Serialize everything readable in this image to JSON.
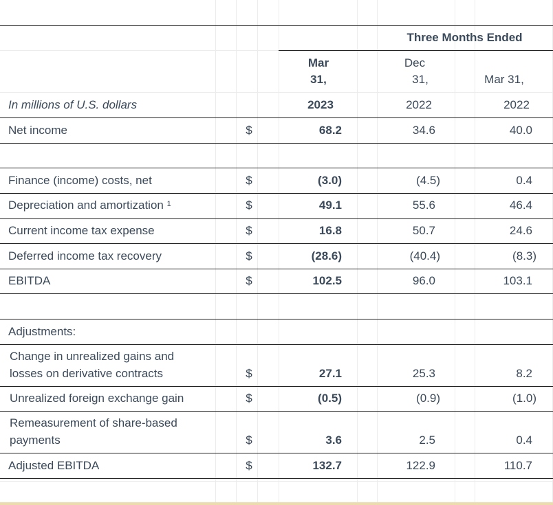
{
  "header": {
    "group_title": "Three Months Ended",
    "units_label": "In millions of U.S. dollars",
    "col1": {
      "line1": "Mar",
      "line2": "31,",
      "year": "2023"
    },
    "col2": {
      "line1": "Dec",
      "line2": "31,",
      "year": "2022"
    },
    "col3": {
      "line1": "Mar 31,",
      "year": "2022"
    }
  },
  "currency_symbol": "$",
  "rows": {
    "net_income": {
      "label": "Net income",
      "v1": "68.2",
      "v2": "34.6",
      "v3": "40.0"
    },
    "finance": {
      "label": "Finance (income) costs, net",
      "v1": "(3.0)",
      "v2": "(4.5)",
      "v3": "0.4"
    },
    "depreciation": {
      "label": "Depreciation and amortization",
      "footnote": "1",
      "v1": "49.1",
      "v2": "55.6",
      "v3": "46.4"
    },
    "current_tax": {
      "label": "Current income tax expense",
      "v1": "16.8",
      "v2": "50.7",
      "v3": "24.6"
    },
    "deferred_tax": {
      "label": "Deferred income tax recovery",
      "v1": "(28.6)",
      "v2": "(40.4)",
      "v3": "(8.3)"
    },
    "ebitda": {
      "label": "EBITDA",
      "v1": "102.5",
      "v2": "96.0",
      "v3": "103.1"
    },
    "adjustments": {
      "label": "Adjustments:"
    },
    "unrealized_derivatives": {
      "label_line1": "Change in unrealized gains and",
      "label_line2": "losses on derivative contracts",
      "v1": "27.1",
      "v2": "25.3",
      "v3": "8.2"
    },
    "fx_gain": {
      "label": "Unrealized foreign exchange gain",
      "v1": "(0.5)",
      "v2": "(0.9)",
      "v3": "(1.0)"
    },
    "share_based": {
      "label_line1": "Remeasurement of share-based",
      "label_line2": "payments",
      "v1": "3.6",
      "v2": "2.5",
      "v3": "0.4"
    },
    "adjusted_ebitda": {
      "label": "Adjusted EBITDA",
      "v1": "132.7",
      "v2": "122.9",
      "v3": "110.7"
    }
  }
}
